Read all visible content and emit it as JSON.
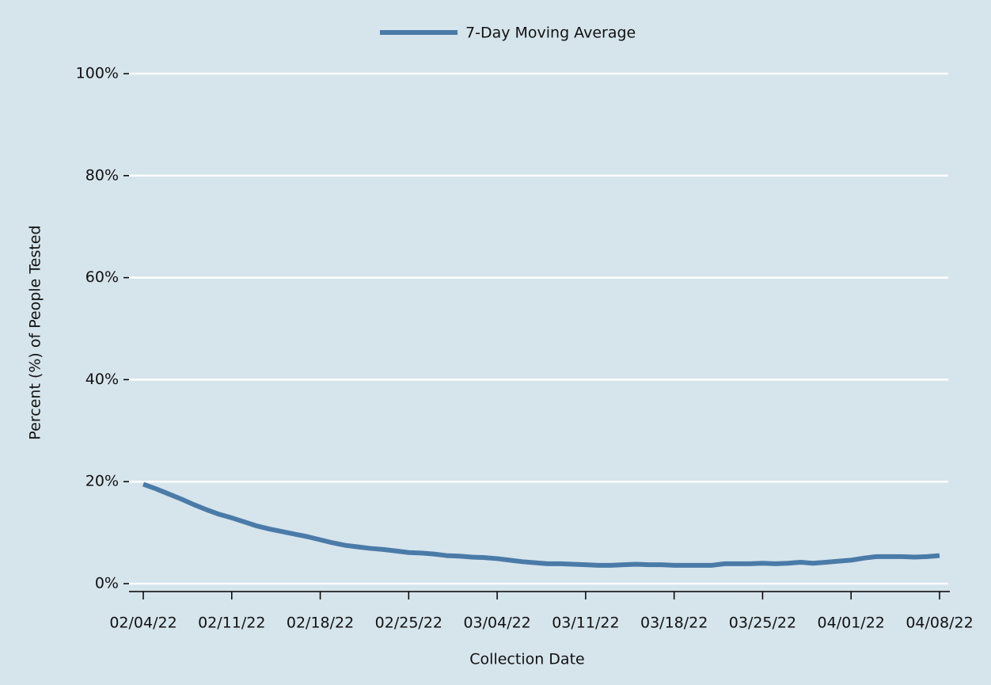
{
  "chart_data": {
    "type": "line",
    "legend_position": "top",
    "xlabel": "Collection Date",
    "ylabel": "Percent (%) of People Tested",
    "x": [
      "02/04/22",
      null,
      null,
      null,
      null,
      null,
      null,
      "02/11/22",
      null,
      null,
      null,
      null,
      null,
      null,
      "02/18/22",
      null,
      null,
      null,
      null,
      null,
      null,
      "02/25/22",
      null,
      null,
      null,
      null,
      null,
      null,
      "03/04/22",
      null,
      null,
      null,
      null,
      null,
      null,
      "03/11/22",
      null,
      null,
      null,
      null,
      null,
      null,
      "03/18/22",
      null,
      null,
      null,
      null,
      null,
      null,
      "03/25/22",
      null,
      null,
      null,
      null,
      null,
      null,
      "04/01/22",
      null,
      null,
      null,
      null,
      null,
      null,
      "04/08/22"
    ],
    "series": [
      {
        "name": "7-Day Moving Average",
        "color": "#4a7ba8",
        "values": [
          19.5,
          18.6,
          17.6,
          16.6,
          15.5,
          14.5,
          13.6,
          12.9,
          12.1,
          11.3,
          10.7,
          10.2,
          9.7,
          9.2,
          8.6,
          8.0,
          7.5,
          7.2,
          6.9,
          6.7,
          6.4,
          6.1,
          6.0,
          5.8,
          5.5,
          5.4,
          5.2,
          5.1,
          4.9,
          4.6,
          4.3,
          4.1,
          3.9,
          3.9,
          3.8,
          3.7,
          3.6,
          3.6,
          3.7,
          3.8,
          3.7,
          3.7,
          3.6,
          3.6,
          3.6,
          3.6,
          3.9,
          3.9,
          3.9,
          4.0,
          3.9,
          4.0,
          4.2,
          4.0,
          4.2,
          4.4,
          4.6,
          5.0,
          5.3,
          5.3,
          5.3,
          5.2,
          5.3,
          5.5
        ]
      }
    ],
    "ylim": [
      0,
      100
    ],
    "yticks": [
      {
        "value": 0,
        "label": "0%"
      },
      {
        "value": 20,
        "label": "20%"
      },
      {
        "value": 40,
        "label": "40%"
      },
      {
        "value": 60,
        "label": "60%"
      },
      {
        "value": 80,
        "label": "80%"
      },
      {
        "value": 100,
        "label": "100%"
      }
    ],
    "grid": true
  }
}
